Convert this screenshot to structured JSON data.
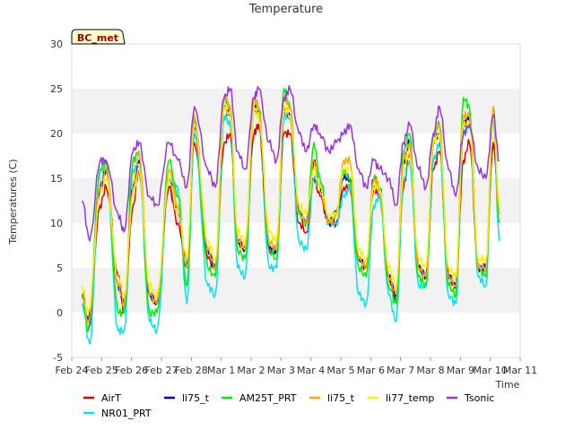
{
  "chart_data": {
    "type": "line",
    "title": "Temperature",
    "ylabel": "Temperatures (C)",
    "xlabel": "Time",
    "ylim": [
      -5,
      30
    ],
    "yticks": [
      "-5",
      "0",
      "5",
      "10",
      "15",
      "20",
      "25",
      "30"
    ],
    "xlim": [
      0,
      15
    ],
    "xticks": [
      "Feb 24",
      "Feb 25",
      "Feb 26",
      "Feb 27",
      "Feb 28",
      "Mar 1",
      "Mar 2",
      "Mar 3",
      "Mar 4",
      "Mar 5",
      "Mar 6",
      "Mar 7",
      "Mar 8",
      "Mar 9",
      "Mar 10",
      "Mar 11"
    ],
    "grid": "horizontal bands",
    "site_label": "BC_met",
    "legend_position": "bottom",
    "series": [
      {
        "name": "AirT",
        "color": "#dd0000",
        "x": [
          0.35,
          0.55,
          0.95,
          1.15,
          1.55,
          1.75,
          2.05,
          2.25,
          2.6,
          2.85,
          3.25,
          3.55,
          3.85,
          4.1,
          4.55,
          4.8,
          5.1,
          5.3,
          5.55,
          5.8,
          6.1,
          6.25,
          6.6,
          6.85,
          7.1,
          7.3,
          7.6,
          7.85,
          8.1,
          8.3,
          8.6,
          8.85,
          9.1,
          9.3,
          9.6,
          9.85,
          10.1,
          10.3,
          10.6,
          10.85,
          11.1,
          11.3,
          11.6,
          11.85,
          12.1,
          12.3,
          12.6,
          12.85,
          13.1,
          13.3,
          13.6,
          13.85,
          14.1,
          14.3
        ],
        "y": [
          2,
          -2,
          12,
          14,
          4,
          0,
          12,
          16,
          2,
          1,
          14,
          10,
          5,
          19,
          6,
          5,
          19,
          20,
          8,
          7,
          20,
          21,
          7,
          7,
          20,
          20,
          10,
          9,
          15,
          13,
          10,
          10,
          14,
          14,
          6,
          5,
          14,
          13,
          4,
          1,
          14,
          18,
          5,
          4,
          16,
          18,
          4,
          3,
          17,
          19,
          5,
          5,
          19,
          11
        ]
      },
      {
        "name": "NR01_PRT",
        "color": "#00e5ee",
        "x": [
          0.35,
          0.6,
          0.95,
          1.15,
          1.55,
          1.75,
          2.05,
          2.25,
          2.6,
          2.85,
          3.25,
          3.55,
          3.85,
          4.1,
          4.55,
          4.8,
          5.1,
          5.3,
          5.55,
          5.8,
          6.1,
          6.25,
          6.6,
          6.85,
          7.1,
          7.3,
          7.6,
          7.85,
          8.1,
          8.3,
          8.6,
          8.85,
          9.1,
          9.3,
          9.6,
          9.85,
          10.1,
          10.3,
          10.6,
          10.85,
          11.1,
          11.3,
          11.6,
          11.85,
          12.1,
          12.3,
          12.6,
          12.85,
          13.1,
          13.3,
          13.6,
          13.85,
          14.1,
          14.3
        ],
        "y": [
          1,
          -3.5,
          16,
          16,
          -2,
          -2,
          16,
          16,
          -1,
          -2,
          15,
          14,
          1,
          20,
          3,
          2,
          22,
          21,
          5,
          4,
          23,
          22,
          5,
          5,
          22,
          22,
          8,
          7,
          15,
          14,
          10,
          10,
          13,
          14,
          2,
          1,
          12,
          13,
          2,
          -1,
          15,
          17,
          3,
          3,
          17,
          19,
          2,
          1,
          20,
          21,
          4,
          3,
          22,
          8
        ]
      },
      {
        "name": "li75_t",
        "color": "#0000bb",
        "x": [
          0.35,
          0.55,
          0.95,
          1.15,
          1.55,
          1.75,
          2.05,
          2.25,
          2.6,
          2.85,
          3.25,
          3.55,
          3.85,
          4.1,
          4.55,
          4.8,
          5.1,
          5.3,
          5.55,
          5.8,
          6.1,
          6.25,
          6.6,
          6.85,
          7.1,
          7.3,
          7.6,
          7.85,
          8.1,
          8.3,
          8.6,
          8.85,
          9.1,
          9.3,
          9.6,
          9.85,
          10.1,
          10.3,
          10.6,
          10.85,
          11.1,
          11.3,
          11.6,
          11.85,
          12.1,
          12.3,
          12.6,
          12.85,
          13.1,
          13.3,
          13.6,
          13.85,
          14.1,
          14.3
        ],
        "y": [
          2,
          -1,
          14,
          16,
          3,
          1,
          14,
          17,
          2,
          1,
          15,
          11,
          5,
          21,
          7,
          5,
          23,
          22,
          8,
          7,
          23,
          22,
          7,
          7,
          23,
          22,
          11,
          10,
          17,
          14,
          10,
          11,
          15,
          15,
          6,
          5,
          15,
          14,
          4,
          2,
          17,
          19,
          5,
          4,
          19,
          20,
          4,
          3,
          21,
          22,
          5,
          5,
          22,
          11
        ]
      },
      {
        "name": "AM25T_PRT",
        "color": "#00ee00",
        "x": [
          0.35,
          0.55,
          0.95,
          1.15,
          1.55,
          1.75,
          2.05,
          2.25,
          2.6,
          2.85,
          3.25,
          3.55,
          3.85,
          4.1,
          4.55,
          4.8,
          5.1,
          5.3,
          5.55,
          5.8,
          6.1,
          6.25,
          6.6,
          6.85,
          7.1,
          7.3,
          7.6,
          7.85,
          8.1,
          8.3,
          8.6,
          8.85,
          9.1,
          9.3,
          9.6,
          9.85,
          10.1,
          10.3,
          10.6,
          10.85,
          11.1,
          11.3,
          11.6,
          11.85,
          12.1,
          12.3,
          12.6,
          12.85,
          13.1,
          13.3,
          13.6,
          13.85,
          14.1,
          14.3
        ],
        "y": [
          2,
          -2,
          16,
          17,
          0,
          0,
          17,
          18,
          0,
          0,
          17,
          13,
          3,
          22,
          5,
          4,
          24,
          23,
          7,
          6,
          24,
          23,
          7,
          6,
          25,
          23,
          11,
          10,
          19,
          15,
          10,
          11,
          16,
          15,
          5,
          4,
          15,
          14,
          3,
          1,
          18,
          20,
          4,
          3,
          20,
          21,
          3,
          2,
          24,
          23,
          5,
          4,
          23,
          10
        ]
      },
      {
        "name": "li75_t",
        "color": "#ffaa00",
        "x": [
          0.35,
          0.55,
          0.95,
          1.15,
          1.55,
          1.75,
          2.05,
          2.25,
          2.6,
          2.85,
          3.25,
          3.55,
          3.85,
          4.1,
          4.55,
          4.8,
          5.1,
          5.3,
          5.55,
          5.8,
          6.1,
          6.25,
          6.6,
          6.85,
          7.1,
          7.3,
          7.6,
          7.85,
          8.1,
          8.3,
          8.6,
          8.85,
          9.1,
          9.3,
          9.6,
          9.85,
          10.1,
          10.3,
          10.6,
          10.85,
          11.1,
          11.3,
          11.6,
          11.85,
          12.1,
          12.3,
          12.6,
          12.85,
          13.1,
          13.3,
          13.6,
          13.85,
          14.1,
          14.3
        ],
        "y": [
          2,
          -1,
          14,
          16,
          3,
          1,
          14,
          18,
          2,
          1,
          16,
          12,
          5,
          22,
          7,
          5,
          24,
          23,
          8,
          7,
          24,
          23,
          8,
          7,
          24,
          23,
          11,
          10,
          17,
          14,
          10,
          11,
          17,
          17,
          6,
          5,
          15,
          14,
          4,
          2,
          17,
          19,
          5,
          4,
          20,
          21,
          4,
          3,
          22,
          22,
          5,
          5,
          23,
          11
        ]
      },
      {
        "name": "li77_temp",
        "color": "#ffee00",
        "x": [
          0.35,
          0.55,
          0.95,
          1.15,
          1.55,
          1.75,
          2.05,
          2.25,
          2.6,
          2.85,
          3.25,
          3.55,
          3.85,
          4.1,
          4.55,
          4.8,
          5.1,
          5.3,
          5.55,
          5.8,
          6.1,
          6.25,
          6.6,
          6.85,
          7.1,
          7.3,
          7.6,
          7.85,
          8.1,
          8.3,
          8.6,
          8.85,
          9.1,
          9.3,
          9.6,
          9.85,
          10.1,
          10.3,
          10.6,
          10.85,
          11.1,
          11.3,
          11.6,
          11.85,
          12.1,
          12.3,
          12.6,
          12.85,
          13.1,
          13.3,
          13.6,
          13.85,
          14.1,
          14.3
        ],
        "y": [
          3,
          0,
          13,
          15,
          4,
          2,
          13,
          16,
          3,
          2,
          15,
          11,
          6,
          21,
          8,
          6,
          23,
          22,
          9,
          8,
          23,
          22,
          9,
          8,
          23,
          22,
          12,
          11,
          16,
          14,
          11,
          11,
          16,
          16,
          7,
          6,
          14,
          14,
          5,
          3,
          16,
          18,
          6,
          5,
          19,
          20,
          5,
          4,
          21,
          21,
          6,
          6,
          22,
          12
        ]
      },
      {
        "name": "Tsonic",
        "color": "#9933dd",
        "x": [
          0.35,
          0.6,
          0.95,
          1.15,
          1.55,
          1.75,
          2.05,
          2.25,
          2.6,
          2.85,
          3.25,
          3.55,
          3.85,
          4.1,
          4.55,
          4.8,
          5.1,
          5.3,
          5.55,
          5.8,
          6.1,
          6.25,
          6.6,
          6.85,
          7.1,
          7.3,
          7.6,
          7.85,
          8.1,
          8.3,
          8.6,
          8.85,
          9.1,
          9.3,
          9.6,
          9.85,
          10.1,
          10.3,
          10.6,
          10.85,
          11.1,
          11.3,
          11.6,
          11.85,
          12.1,
          12.3,
          12.6,
          12.85,
          13.1,
          13.3,
          13.6,
          13.85,
          14.1,
          14.3
        ],
        "y": [
          12.5,
          8,
          17,
          17,
          11,
          9,
          18,
          19,
          13,
          12,
          19,
          17,
          14,
          23,
          16,
          14,
          24,
          25,
          18,
          16,
          24,
          25,
          19,
          17,
          24,
          25,
          20,
          18,
          21,
          20,
          18,
          19,
          20,
          21,
          16,
          14,
          17,
          16,
          15,
          12,
          19,
          21,
          16,
          14,
          20,
          23,
          16,
          13,
          20,
          21,
          16,
          15,
          22,
          17
        ]
      }
    ]
  }
}
